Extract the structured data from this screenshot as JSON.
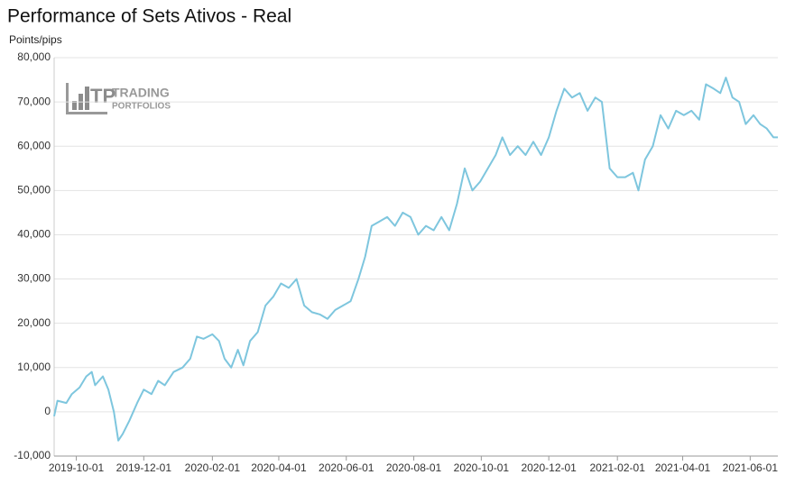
{
  "chart_data": {
    "type": "line",
    "title": "Performance of Sets Ativos - Real",
    "y_label": "Points/pips",
    "watermark": {
      "line1": "TRADING",
      "line2": "PORTFOLIOS"
    },
    "x": [
      "2019-09-11",
      "2019-09-14",
      "2019-09-22",
      "2019-09-27",
      "2019-10-04",
      "2019-10-10",
      "2019-10-15",
      "2019-10-18",
      "2019-10-25",
      "2019-10-30",
      "2019-11-04",
      "2019-11-08",
      "2019-11-12",
      "2019-11-18",
      "2019-11-25",
      "2019-12-01",
      "2019-12-08",
      "2019-12-14",
      "2019-12-20",
      "2019-12-28",
      "2020-01-05",
      "2020-01-12",
      "2020-01-18",
      "2020-01-24",
      "2020-02-01",
      "2020-02-07",
      "2020-02-12",
      "2020-02-18",
      "2020-02-24",
      "2020-02-29",
      "2020-03-06",
      "2020-03-13",
      "2020-03-20",
      "2020-03-27",
      "2020-04-03",
      "2020-04-10",
      "2020-04-17",
      "2020-04-24",
      "2020-05-01",
      "2020-05-08",
      "2020-05-15",
      "2020-05-22",
      "2020-05-29",
      "2020-06-05",
      "2020-06-12",
      "2020-06-18",
      "2020-06-24",
      "2020-07-01",
      "2020-07-08",
      "2020-07-15",
      "2020-07-22",
      "2020-07-29",
      "2020-08-05",
      "2020-08-12",
      "2020-08-19",
      "2020-08-26",
      "2020-09-02",
      "2020-09-09",
      "2020-09-16",
      "2020-09-23",
      "2020-09-30",
      "2020-10-07",
      "2020-10-14",
      "2020-10-20",
      "2020-10-27",
      "2020-11-03",
      "2020-11-10",
      "2020-11-17",
      "2020-11-24",
      "2020-12-01",
      "2020-12-08",
      "2020-12-15",
      "2020-12-22",
      "2020-12-29",
      "2021-01-05",
      "2021-01-12",
      "2021-01-18",
      "2021-01-25",
      "2021-02-01",
      "2021-02-08",
      "2021-02-15",
      "2021-02-20",
      "2021-02-26",
      "2021-03-05",
      "2021-03-12",
      "2021-03-19",
      "2021-03-26",
      "2021-04-02",
      "2021-04-09",
      "2021-04-16",
      "2021-04-22",
      "2021-04-29",
      "2021-05-05",
      "2021-05-10",
      "2021-05-16",
      "2021-05-22",
      "2021-05-28",
      "2021-06-04",
      "2021-06-10",
      "2021-06-16",
      "2021-06-22",
      "2021-06-26"
    ],
    "series": [
      {
        "name": "Performance",
        "color": "#7ec6de",
        "values": [
          -1000,
          2500,
          2000,
          4000,
          5500,
          8000,
          9000,
          6000,
          8000,
          5000,
          0,
          -6500,
          -5000,
          -2000,
          2000,
          5000,
          4000,
          7000,
          6000,
          9000,
          10000,
          12000,
          17000,
          16500,
          17500,
          16000,
          12000,
          10000,
          14000,
          10500,
          16000,
          18000,
          24000,
          26000,
          29000,
          28000,
          30000,
          24000,
          22500,
          22000,
          21000,
          23000,
          24000,
          25000,
          30000,
          35000,
          42000,
          43000,
          44000,
          42000,
          45000,
          44000,
          40000,
          42000,
          41000,
          44000,
          41000,
          47000,
          55000,
          50000,
          52000,
          55000,
          58000,
          62000,
          58000,
          60000,
          58000,
          61000,
          58000,
          62000,
          68000,
          73000,
          71000,
          72000,
          68000,
          71000,
          70000,
          55000,
          53000,
          53000,
          54000,
          50000,
          57000,
          60000,
          67000,
          64000,
          68000,
          67000,
          68000,
          66000,
          74000,
          73000,
          72000,
          75500,
          71000,
          70000,
          65000,
          67000,
          65000,
          64000,
          62000,
          62000
        ]
      }
    ],
    "xlim": [
      "2019-09-11",
      "2021-06-26"
    ],
    "xticks": [
      "2019-10-01",
      "2019-12-01",
      "2020-02-01",
      "2020-04-01",
      "2020-06-01",
      "2020-08-01",
      "2020-10-01",
      "2020-12-01",
      "2021-02-01",
      "2021-04-01",
      "2021-06-01"
    ],
    "ylim": [
      -10000,
      80000
    ],
    "yticks": [
      {
        "value": -10000,
        "label": "-10,000"
      },
      0,
      {
        "value": 10000,
        "label": "10,000"
      },
      {
        "value": 20000,
        "label": "20,000"
      },
      {
        "value": 30000,
        "label": "30,000"
      },
      {
        "value": 40000,
        "label": "40,000"
      },
      {
        "value": 50000,
        "label": "50,000"
      },
      {
        "value": 60000,
        "label": "60,000"
      },
      {
        "value": 70000,
        "label": "70,000"
      },
      {
        "value": 80000,
        "label": "80,000"
      }
    ],
    "grid": true
  }
}
